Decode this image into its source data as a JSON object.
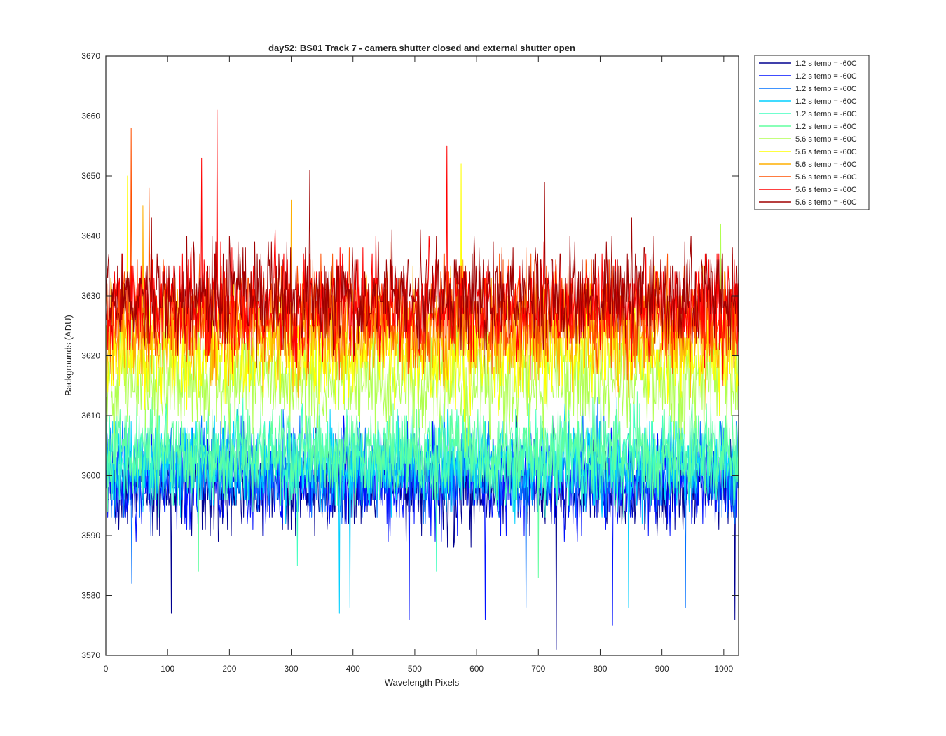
{
  "chart_data": {
    "type": "line",
    "title": "day52: BS01  Track 7 - camera shutter closed and external shutter open",
    "xlabel": "Wavelength Pixels",
    "ylabel": "Backgrounds (ADU)",
    "xlim": [
      0,
      1024
    ],
    "ylim": [
      3570,
      3670
    ],
    "xticks": [
      0,
      100,
      200,
      300,
      400,
      500,
      600,
      700,
      800,
      900,
      1000
    ],
    "yticks": [
      3570,
      3580,
      3590,
      3600,
      3610,
      3620,
      3630,
      3640,
      3650,
      3660,
      3670
    ],
    "grid": false,
    "legend_position": "outside-top-right",
    "series": [
      {
        "name": "1.2 s temp = -60C",
        "color": "#00008f",
        "mean": 3598,
        "spread": 6,
        "peaks": [
          [
            729,
            3571
          ],
          [
            1018,
            3576
          ],
          [
            106,
            3577
          ]
        ]
      },
      {
        "name": "1.2 s temp = -60C",
        "color": "#0010ff",
        "mean": 3599,
        "spread": 6,
        "peaks": [
          [
            491,
            3576
          ],
          [
            614,
            3576
          ],
          [
            820,
            3575
          ]
        ]
      },
      {
        "name": "1.2 s temp = -60C",
        "color": "#0070ff",
        "mean": 3601,
        "spread": 6,
        "peaks": [
          [
            42,
            3582
          ],
          [
            680,
            3578
          ],
          [
            938,
            3578
          ]
        ]
      },
      {
        "name": "1.2 s temp = -60C",
        "color": "#00cfff",
        "mean": 3602,
        "spread": 6,
        "peaks": [
          [
            378,
            3577
          ],
          [
            395,
            3578
          ],
          [
            846,
            3578
          ]
        ]
      },
      {
        "name": "1.2 s temp = -60C",
        "color": "#40ffbf",
        "mean": 3603,
        "spread": 6,
        "peaks": [
          [
            310,
            3585
          ],
          [
            535,
            3584
          ]
        ]
      },
      {
        "name": "1.2 s temp = -60C",
        "color": "#60ff9f",
        "mean": 3604,
        "spread": 6,
        "peaks": [
          [
            150,
            3584
          ],
          [
            700,
            3583
          ]
        ]
      },
      {
        "name": "5.6 s temp = -60C",
        "color": "#b0ff50",
        "mean": 3616,
        "spread": 7,
        "peaks": [
          [
            995,
            3642
          ]
        ]
      },
      {
        "name": "5.6 s temp = -60C",
        "color": "#ffff00",
        "mean": 3621,
        "spread": 7,
        "peaks": [
          [
            575,
            3652
          ],
          [
            35,
            3650
          ]
        ]
      },
      {
        "name": "5.6 s temp = -60C",
        "color": "#ffaf00",
        "mean": 3624,
        "spread": 7,
        "peaks": [
          [
            60,
            3645
          ],
          [
            300,
            3646
          ]
        ]
      },
      {
        "name": "5.6 s temp = -60C",
        "color": "#ff5000",
        "mean": 3627,
        "spread": 7,
        "peaks": [
          [
            41,
            3658
          ],
          [
            70,
            3648
          ]
        ]
      },
      {
        "name": "5.6 s temp = -60C",
        "color": "#ff0000",
        "mean": 3628,
        "spread": 7,
        "peaks": [
          [
            180,
            3661
          ],
          [
            155,
            3653
          ],
          [
            552,
            3655
          ]
        ]
      },
      {
        "name": "5.6 s temp = -60C",
        "color": "#9f0000",
        "mean": 3630,
        "spread": 7,
        "peaks": [
          [
            330,
            3651
          ],
          [
            710,
            3649
          ]
        ]
      }
    ]
  }
}
